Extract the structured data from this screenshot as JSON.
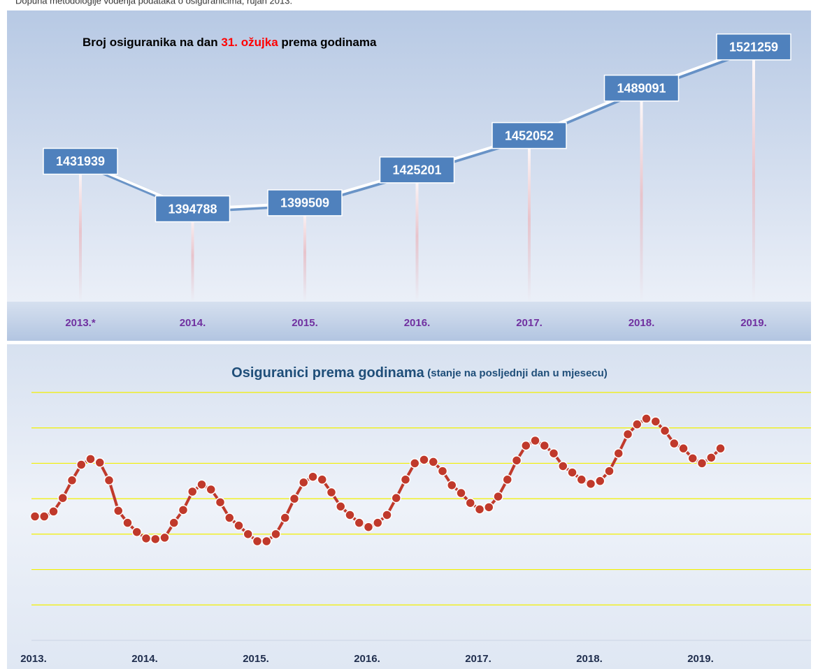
{
  "note": "Dopuna metodologije vođenja podataka o osiguranicima, rujan 2013.",
  "chart_data": [
    {
      "type": "line",
      "title": [
        "Broj osiguranika na dan",
        "31. ožujka",
        "prema godinama"
      ],
      "categories": [
        "2013.*",
        "2014.",
        "2015.",
        "2016.",
        "2017.",
        "2018.",
        "2019."
      ],
      "values": [
        1431939,
        1394788,
        1399509,
        1425201,
        1452052,
        1489091,
        1521259
      ],
      "color": "#4f81bd",
      "highlight_color": "#ff0000",
      "category_color": "#7030a0",
      "ylim": [
        1310000,
        1550000
      ],
      "data_labels": true
    },
    {
      "type": "line",
      "title": "Osiguranici prema godinama",
      "subtitle": "(stanje na posljednji dan u mjesecu)",
      "categories": [
        "2013.",
        null,
        null,
        null,
        null,
        null,
        null,
        null,
        null,
        null,
        null,
        null,
        "2014.",
        null,
        null,
        null,
        null,
        null,
        null,
        null,
        null,
        null,
        null,
        null,
        "2015.",
        null,
        null,
        null,
        null,
        null,
        null,
        null,
        null,
        null,
        null,
        null,
        "2016.",
        null,
        null,
        null,
        null,
        null,
        null,
        null,
        null,
        null,
        null,
        null,
        "2017.",
        null,
        null,
        null,
        null,
        null,
        null,
        null,
        null,
        null,
        null,
        null,
        "2018.",
        null,
        null,
        null,
        null,
        null,
        null,
        null,
        null,
        null,
        null,
        null,
        "2019.",
        null,
        null
      ],
      "values": [
        1425000,
        1425000,
        1432000,
        1451000,
        1476000,
        1498000,
        1506000,
        1501000,
        1476000,
        1433000,
        1416000,
        1403000,
        1394000,
        1393000,
        1395000,
        1416000,
        1434000,
        1460000,
        1470000,
        1463000,
        1445000,
        1423000,
        1412000,
        1400000,
        1390000,
        1390000,
        1400000,
        1423000,
        1450000,
        1473000,
        1481000,
        1477000,
        1459000,
        1439000,
        1427000,
        1416000,
        1410000,
        1416000,
        1427000,
        1451000,
        1477000,
        1500000,
        1505000,
        1502000,
        1489000,
        1469000,
        1458000,
        1444000,
        1435000,
        1438000,
        1453000,
        1477000,
        1504000,
        1525000,
        1532000,
        1525000,
        1514000,
        1496000,
        1487000,
        1477000,
        1471000,
        1475000,
        1489000,
        1514000,
        1541000,
        1555000,
        1563000,
        1559000,
        1546000,
        1528000,
        1521000,
        1507000,
        1500000,
        1508000,
        1521000
      ],
      "color": "#c0392b",
      "grid_color": "#f2f000",
      "markers": true,
      "ylim": [
        1250000,
        1600000
      ],
      "yticks": [
        1250000,
        1300000,
        1350000,
        1400000,
        1450000,
        1500000,
        1550000,
        1600000
      ],
      "grid": true
    }
  ]
}
